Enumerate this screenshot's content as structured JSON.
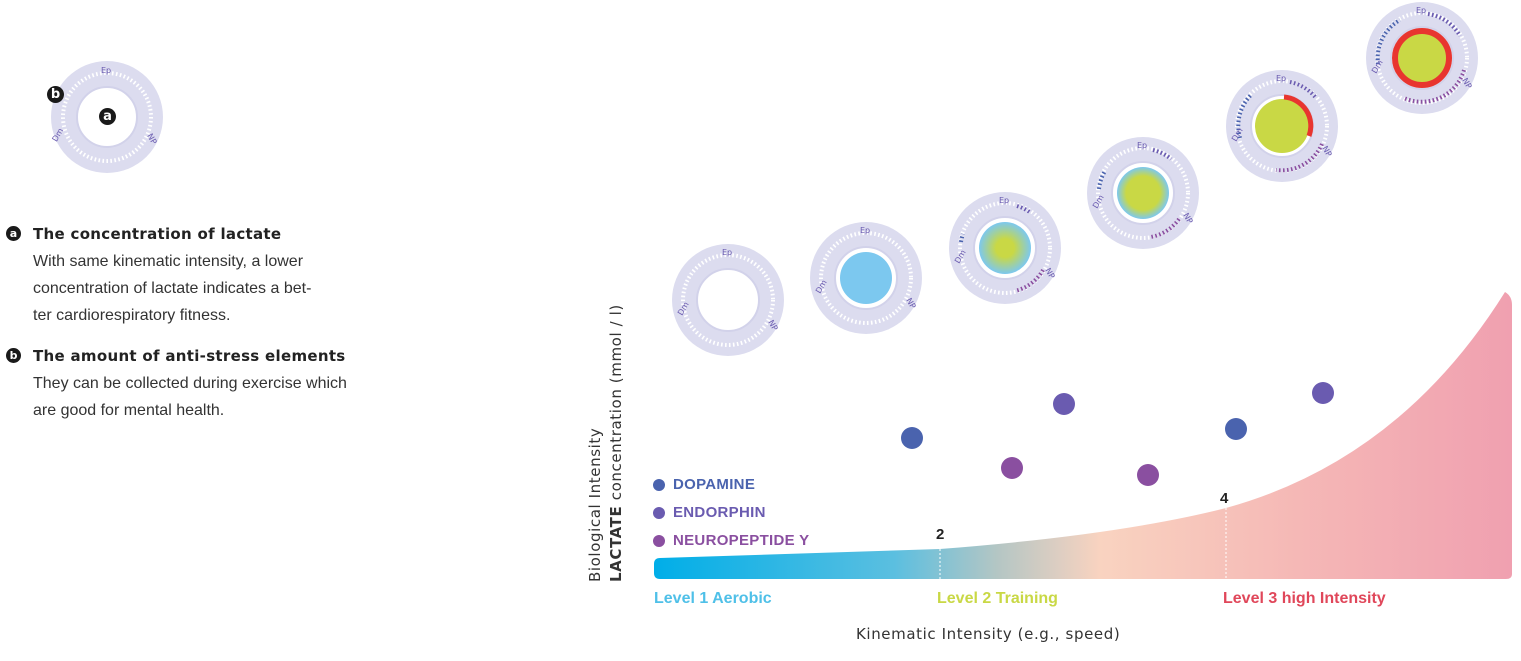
{
  "key_gauge": {
    "label_ep": "Ep",
    "label_np": "NP",
    "label_dm": "Dm",
    "marker_a": "a",
    "marker_b": "b"
  },
  "notes": [
    {
      "marker": "a",
      "title": "The concentration of lactate",
      "lines": [
        "With same kinematic intensity, a lower",
        "concentration of lactate indicates a bet-",
        "ter cardiorespiratory fitness."
      ]
    },
    {
      "marker": "b",
      "title": "The amount of anti-stress elements",
      "lines": [
        "They can be collected during exercise which",
        "are good for mental health."
      ]
    }
  ],
  "gauge_labels": {
    "ep": "Ep",
    "np": "NP",
    "dm": "Dm"
  },
  "axes": {
    "y_line1": "Biological Intensity",
    "y_line2_bold": "LACTATE",
    "y_line2_rest": " concentration (mmol / l)",
    "x": "Kinematic Intensity (e.g., speed)"
  },
  "thresholds": [
    {
      "label": "2"
    },
    {
      "label": "4"
    }
  ],
  "levels": [
    {
      "label": "Level 1 Aerobic",
      "color": "#4fc0e8"
    },
    {
      "label": "Level 2 Training",
      "color": "#c9d845"
    },
    {
      "label": "Level 3 high Intensity",
      "color": "#e0475a"
    }
  ],
  "hormone_legend": [
    {
      "label": "DOPAMINE",
      "color": "#4a63ae"
    },
    {
      "label": "ENDORPHIN",
      "color": "#6a5bb0"
    },
    {
      "label": "NEUROPEPTIDE Y",
      "color": "#8a4fa0"
    }
  ],
  "colors": {
    "gauge_ring": "#dcdcef",
    "lactate_low": "#7cc8ef",
    "lactate_mid": "#c9d845",
    "lactate_high": "#e8352f"
  }
}
